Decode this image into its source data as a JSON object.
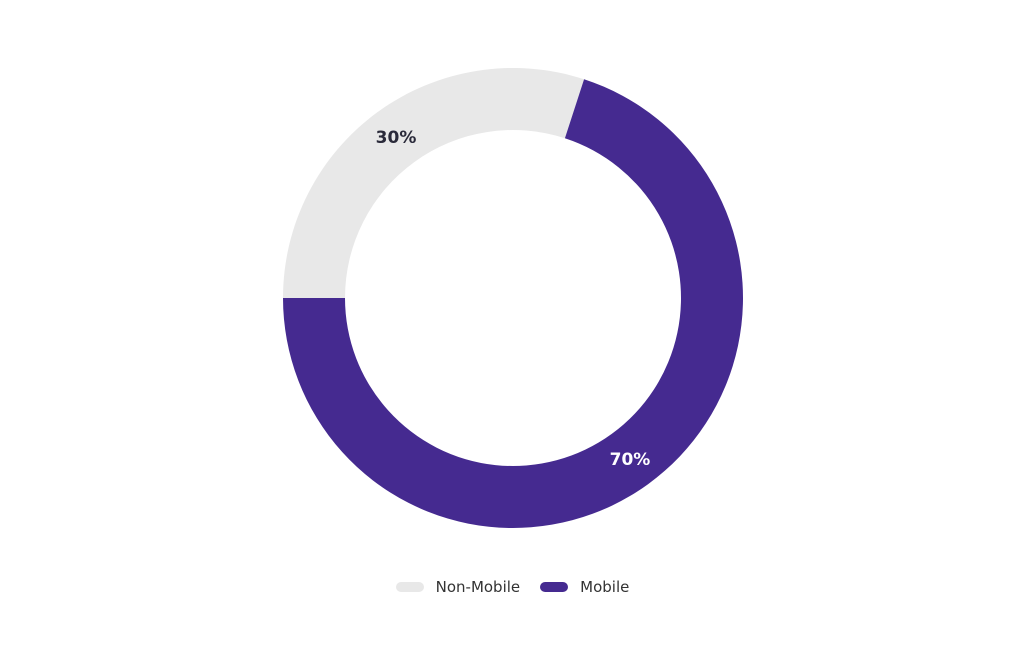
{
  "chart_data": {
    "type": "pie",
    "donut": true,
    "start_angle_deg_clockwise_from_top": 270,
    "slices": [
      {
        "name": "Non-Mobile",
        "value": 30,
        "label": "30%",
        "color": "#e8e8e8",
        "label_color": "#2a2a3a"
      },
      {
        "name": "Mobile",
        "value": 70,
        "label": "70%",
        "color": "#452a90",
        "label_color": "#ffffff"
      }
    ],
    "legend": {
      "placement": "bottom",
      "items": [
        "Non-Mobile",
        "Mobile"
      ]
    }
  }
}
